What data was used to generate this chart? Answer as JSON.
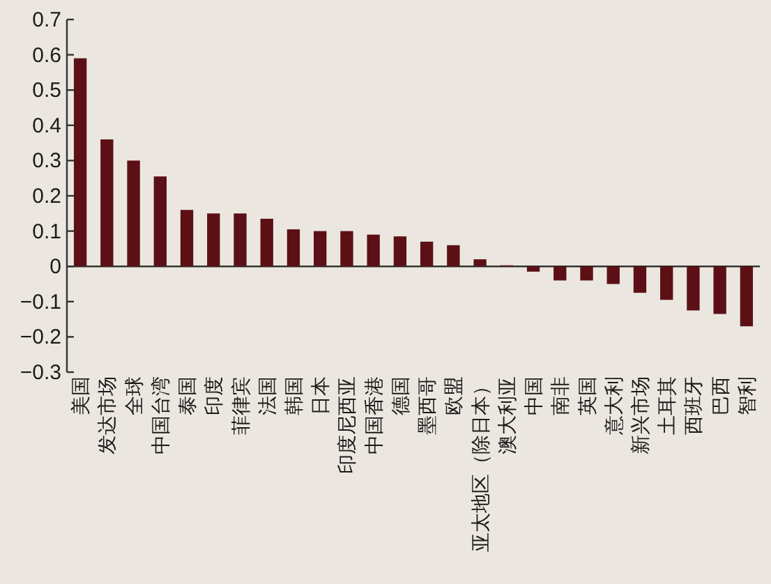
{
  "chart_data": {
    "type": "bar",
    "categories": [
      "美国",
      "发达市场",
      "全球",
      "中国台湾",
      "泰国",
      "印度",
      "菲律宾",
      "法国",
      "韩国",
      "日本",
      "印度尼西亚",
      "中国香港",
      "德国",
      "墨西哥",
      "欧盟",
      "亚太地区（除日本）",
      "澳大利亚",
      "中国",
      "南非",
      "英国",
      "意大利",
      "新兴市场",
      "土耳其",
      "西班牙",
      "巴西",
      "智利"
    ],
    "values": [
      0.59,
      0.36,
      0.3,
      0.255,
      0.16,
      0.15,
      0.15,
      0.135,
      0.105,
      0.1,
      0.1,
      0.09,
      0.085,
      0.07,
      0.06,
      0.02,
      0.003,
      -0.015,
      -0.04,
      -0.04,
      -0.05,
      -0.075,
      -0.095,
      -0.125,
      -0.135,
      -0.17
    ],
    "color": "#5c1015",
    "ylim": [
      -0.3,
      0.7
    ],
    "yticks": [
      {
        "value": -0.3,
        "label": "−0.3"
      },
      {
        "value": -0.2,
        "label": "−0.2"
      },
      {
        "value": -0.1,
        "label": "−0.1"
      },
      0,
      0.1,
      0.2,
      0.3,
      0.4,
      0.5,
      0.6,
      0.7
    ]
  }
}
